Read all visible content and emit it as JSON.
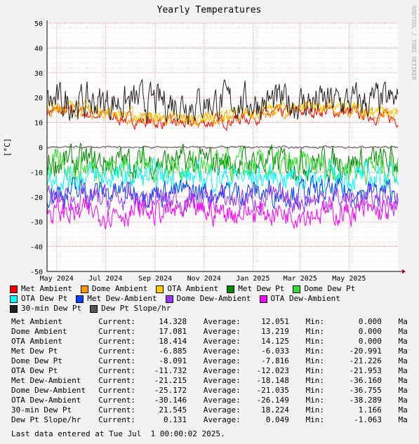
{
  "chart_data": {
    "type": "line",
    "title": "Yearly Temperatures",
    "ylabel": "[°C]",
    "watermark": "RRDTOOL / TOBI OETIKER",
    "ylim": [
      -50,
      50
    ],
    "yticks": [
      50,
      40,
      30,
      20,
      10,
      0,
      -10,
      -20,
      -30,
      -40,
      -50
    ],
    "xlim": [
      "2024-04-19",
      "2025-07-01"
    ],
    "xticks": [
      {
        "label": "May 2024",
        "date": "2024-05-01"
      },
      {
        "label": "Jul 2024",
        "date": "2024-07-01"
      },
      {
        "label": "Sep 2024",
        "date": "2024-09-01"
      },
      {
        "label": "Nov 2024",
        "date": "2024-11-01"
      },
      {
        "label": "Jan 2025",
        "date": "2025-01-01"
      },
      {
        "label": "Mar 2025",
        "date": "2025-03-01"
      },
      {
        "label": "May 2025",
        "date": "2025-05-01"
      }
    ],
    "grid": true,
    "legend_position": "bottom",
    "series": [
      {
        "name": "Met Ambient",
        "color": "#ff0000",
        "current": "14.328",
        "average": "12.051",
        "min": "0.000",
        "level": 12.1,
        "spread": 3
      },
      {
        "name": "Dome Ambient",
        "color": "#ff9900",
        "current": "17.081",
        "average": "13.219",
        "min": "0.000",
        "level": 13.2,
        "spread": 3
      },
      {
        "name": "OTA Ambient",
        "color": "#ffcc00",
        "current": "18.414",
        "average": "14.125",
        "min": "0.000",
        "level": 14.1,
        "spread": 3
      },
      {
        "name": "Met Dew Pt",
        "color": "#008800",
        "current": "-6.885",
        "average": "-6.033",
        "min": "-20.991",
        "level": -6.0,
        "spread": 7
      },
      {
        "name": "Dome Dew Pt",
        "color": "#33dd33",
        "current": "-8.091",
        "average": "-7.816",
        "min": "-21.226",
        "level": -7.8,
        "spread": 7
      },
      {
        "name": "OTA Dew Pt",
        "color": "#00ffff",
        "current": "-11.732",
        "average": "-12.023",
        "min": "-21.953",
        "level": -12.0,
        "spread": 6
      },
      {
        "name": "Met Dew-Ambient",
        "color": "#0044ff",
        "current": "-21.215",
        "average": "-18.148",
        "min": "-36.160",
        "level": -18.1,
        "spread": 6
      },
      {
        "name": "Dome Dew-Ambient",
        "color": "#9933ff",
        "current": "-25.172",
        "average": "-21.035",
        "min": "-36.755",
        "level": -21.0,
        "spread": 6
      },
      {
        "name": "OTA Dew-Ambient",
        "color": "#ff00ff",
        "current": "-30.146",
        "average": "-26.149",
        "min": "-38.289",
        "level": -26.1,
        "spread": 6
      },
      {
        "name": "30-min Dew Pt",
        "color": "#222222",
        "current": "21.545",
        "average": "18.224",
        "min": "1.166",
        "level": 18.2,
        "spread": 8
      },
      {
        "name": "Dew Pt Slope/hr",
        "color": "#555555",
        "current": "0.131",
        "average": "0.049",
        "min": "-1.063",
        "level": 0.05,
        "spread": 0.5
      }
    ]
  },
  "legend_rows": [
    [
      0,
      1,
      2,
      3,
      4
    ],
    [
      5,
      6,
      7,
      8
    ],
    [
      9,
      10
    ]
  ],
  "stats_labels": {
    "current": "Current:",
    "average": "Average:",
    "min": "Min:",
    "max": "Ma"
  },
  "footer": "Last data entered at Tue Jul  1 00:00:02 2025."
}
